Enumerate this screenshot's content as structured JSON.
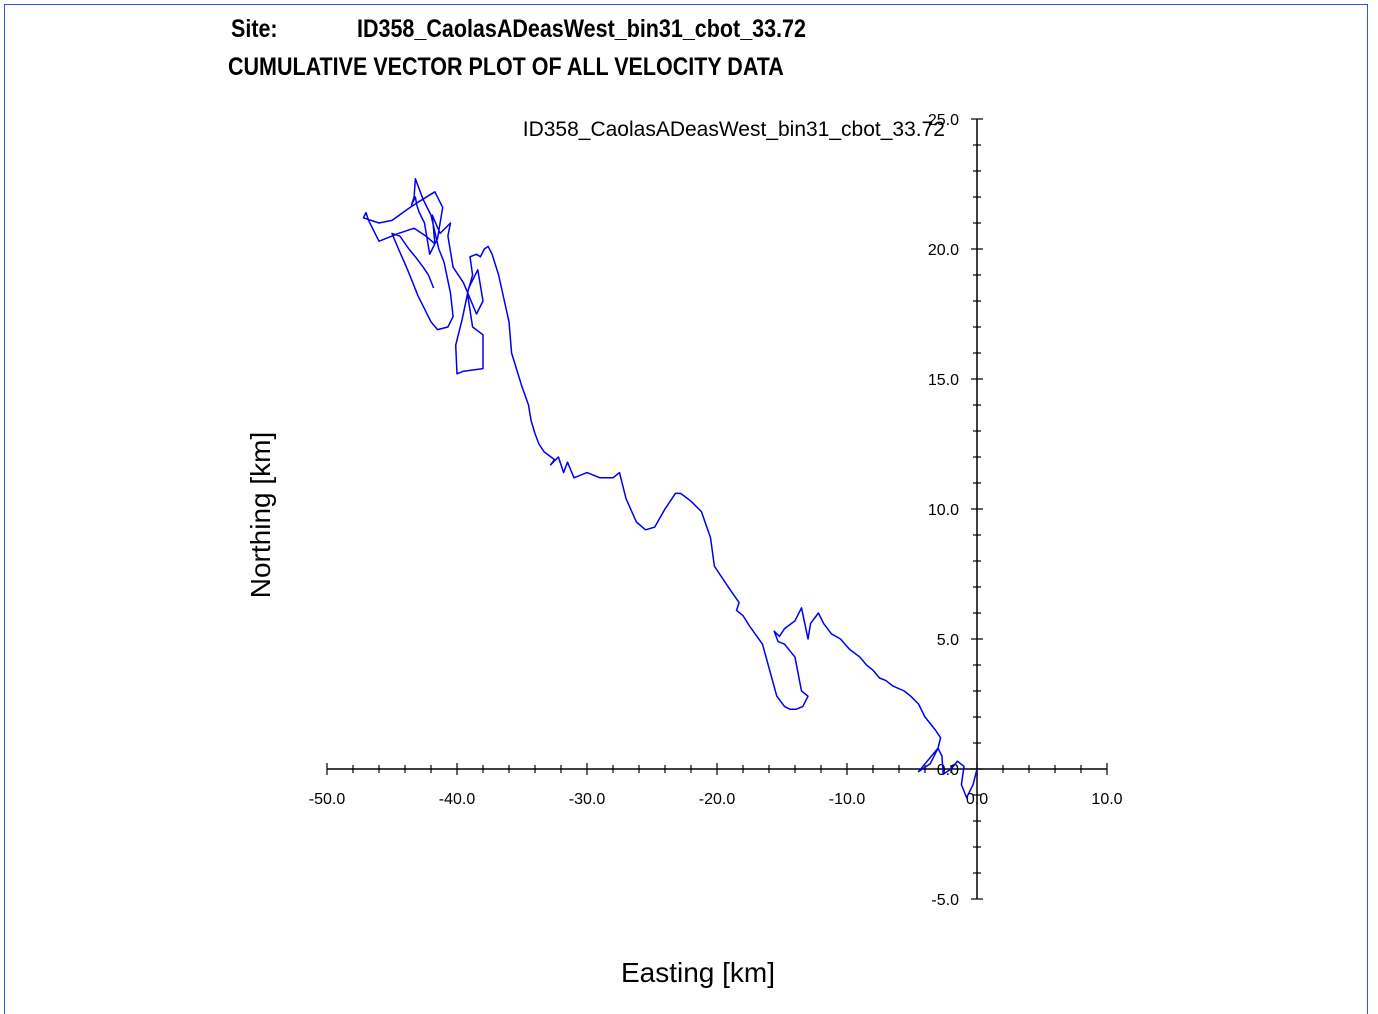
{
  "header": {
    "site_label": "Site:",
    "site_value": "ID358_CaolasADeasWest_bin31_cbot_33.72",
    "title": "CUMULATIVE VECTOR PLOT OF ALL VELOCITY DATA"
  },
  "colors": {
    "trace": "#0000ee",
    "axis": "#000000",
    "frame": "#3355cc"
  },
  "chart_data": {
    "type": "line",
    "title": "ID358_CaolasADeasWest_bin31_cbot_33.72",
    "xlabel": "Easting [km]",
    "ylabel": "Northing [km]",
    "xlim": [
      -50,
      10
    ],
    "ylim": [
      -5,
      25
    ],
    "x_ticks": [
      -50,
      -40,
      -30,
      -20,
      -10,
      0,
      10
    ],
    "x_tick_labels": [
      "-50.0",
      "-40.0",
      "-30.0",
      "-20.0",
      "-10.0",
      "0.0",
      "10.0"
    ],
    "y_ticks": [
      -5,
      0,
      5,
      10,
      15,
      20,
      25
    ],
    "y_tick_labels": [
      "-5.0",
      "0.0",
      "5.0",
      "10.0",
      "15.0",
      "20.0",
      "25.0"
    ],
    "axes_cross_at_origin": true,
    "grid": false,
    "legend": "none",
    "series": [
      {
        "x": [
          0.0,
          -0.3,
          -0.8,
          -1.2,
          -1.0,
          -1.5,
          -2.0,
          -2.6,
          -2.7,
          -3.0,
          -4.0,
          -4.5,
          -3.6,
          -3.0,
          -2.8,
          -3.2,
          -4.0,
          -4.5,
          -5.1,
          -5.6,
          -6.5,
          -7.0,
          -7.5,
          -8.0,
          -8.5,
          -9.0,
          -9.8,
          -10.5,
          -11.2,
          -11.8,
          -12.2,
          -12.8,
          -13.0,
          -13.5,
          -14.0,
          -14.8,
          -15.2,
          -15.6,
          -15.3,
          -14.8,
          -14.0,
          -13.5,
          -13.0,
          -13.4,
          -13.9,
          -14.4,
          -14.8,
          -15.4,
          -16.5,
          -17.5,
          -18.0,
          -18.5,
          -18.3,
          -19.0,
          -19.8,
          -20.2,
          -20.5,
          -21.2,
          -22.0,
          -22.8,
          -23.2,
          -24.0,
          -24.8,
          -25.5,
          -26.2,
          -27.0,
          -27.5,
          -28.0,
          -29.0,
          -30.0,
          -31.0,
          -31.5,
          -31.8,
          -32.2,
          -32.8,
          -32.5,
          -33.3,
          -33.7,
          -34.0,
          -34.3,
          -34.5,
          -35.0,
          -35.8,
          -36.0,
          -36.8,
          -37.3,
          -37.6,
          -37.9,
          -38.2,
          -38.5,
          -39.0,
          -38.8,
          -39.2,
          -38.8,
          -38.0,
          -38.0,
          -39.5,
          -40.0,
          -40.1,
          -39.6,
          -39.1,
          -38.4,
          -38.0,
          -38.5,
          -39.5,
          -40.3,
          -40.7,
          -40.5,
          -41.3,
          -41.9,
          -41.7,
          -42.4,
          -43.3,
          -44.5,
          -46.0,
          -46.3,
          -46.8,
          -47.0,
          -47.2,
          -46.0,
          -45.0,
          -43.6,
          -43.0,
          -41.7,
          -41.1,
          -41.5,
          -41.9,
          -42.1,
          -42.5,
          -42.9,
          -43.1,
          -43.2,
          -43.5,
          -43.3,
          -43.2,
          -42.6,
          -42.2,
          -42.0,
          -41.4,
          -41.0,
          -40.5,
          -40.3,
          -40.7,
          -41.5,
          -42.0,
          -43.0,
          -43.8,
          -44.5,
          -45.0,
          -44.4,
          -43.7,
          -43.2,
          -42.6,
          -42.2,
          -41.8
        ],
        "y": [
          0.0,
          -0.6,
          -1.1,
          -0.6,
          0.1,
          0.3,
          0.0,
          -0.2,
          0.5,
          0.8,
          0.2,
          -0.1,
          0.2,
          0.8,
          1.2,
          1.5,
          2.0,
          2.5,
          2.8,
          3.0,
          3.2,
          3.4,
          3.5,
          3.8,
          4.0,
          4.3,
          4.6,
          5.0,
          5.2,
          5.6,
          6.0,
          5.6,
          5.0,
          6.2,
          5.7,
          5.4,
          5.1,
          5.3,
          4.9,
          4.8,
          4.3,
          3.0,
          2.8,
          2.4,
          2.3,
          2.3,
          2.4,
          2.8,
          4.8,
          5.5,
          5.9,
          6.1,
          6.4,
          6.9,
          7.5,
          7.8,
          8.9,
          9.9,
          10.3,
          10.6,
          10.6,
          10.0,
          9.3,
          9.2,
          9.5,
          10.4,
          11.4,
          11.2,
          11.2,
          11.4,
          11.2,
          11.8,
          11.4,
          12.0,
          11.7,
          11.9,
          12.2,
          12.5,
          12.9,
          13.4,
          14.0,
          14.7,
          16.0,
          17.2,
          19.0,
          19.8,
          20.1,
          20.0,
          19.7,
          19.8,
          19.7,
          19.0,
          18.3,
          17.0,
          16.7,
          15.4,
          15.3,
          15.2,
          16.3,
          17.3,
          18.5,
          19.2,
          18.0,
          17.5,
          18.7,
          19.3,
          20.5,
          21.0,
          20.6,
          21.3,
          20.2,
          20.5,
          20.8,
          20.6,
          20.3,
          20.6,
          21.1,
          21.4,
          21.2,
          21.0,
          21.1,
          21.6,
          21.8,
          22.2,
          21.6,
          20.4,
          20.0,
          19.8,
          21.0,
          21.4,
          21.7,
          22.0,
          21.7,
          22.0,
          22.7,
          21.9,
          21.5,
          21.3,
          20.0,
          19.5,
          18.3,
          17.4,
          17.0,
          16.9,
          17.2,
          18.2,
          19.2,
          20.0,
          20.6,
          20.5,
          20.0,
          19.7,
          19.3,
          19.0,
          18.5
        ]
      }
    ]
  }
}
